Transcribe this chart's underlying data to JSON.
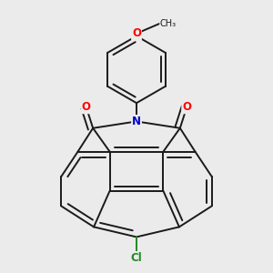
{
  "bg_color": "#ebebeb",
  "bond_color": "#1a1a1a",
  "bond_width": 1.4,
  "atom_colors": {
    "O": "#ff0000",
    "N": "#0000cc",
    "Cl": "#228822",
    "C": "#1a1a1a"
  },
  "figsize": [
    3.0,
    3.0
  ],
  "dpi": 100
}
